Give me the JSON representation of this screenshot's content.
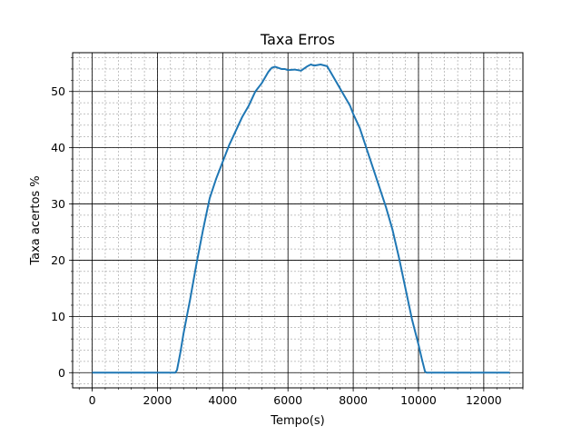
{
  "chart_data": {
    "type": "line",
    "title": "Taxa Erros",
    "xlabel": "Tempo(s)",
    "ylabel": "Taxa acertos %",
    "xlim": [
      -600,
      13200
    ],
    "ylim": [
      -2.7,
      56.9
    ],
    "xticks": [
      0,
      2000,
      4000,
      6000,
      8000,
      10000,
      12000
    ],
    "yticks": [
      0,
      10,
      20,
      30,
      40,
      50
    ],
    "x_minor_step": 400,
    "y_minor_step": 2,
    "grid": "major and minor",
    "line_color": "#1f77b4",
    "series": [
      {
        "x": [
          0,
          1000,
          2000,
          2550,
          2600,
          2700,
          2800,
          2900,
          3000,
          3200,
          3400,
          3600,
          3800,
          4000,
          4200,
          4400,
          4600,
          4800,
          5000,
          5200,
          5400,
          5500,
          5600,
          5700,
          5800,
          5900,
          6000,
          6200,
          6400,
          6600,
          6700,
          6800,
          7000,
          7200,
          7300,
          7500,
          7700,
          7900,
          8000,
          8200,
          8400,
          8600,
          8800,
          9000,
          9200,
          9400,
          9600,
          9800,
          10000,
          10100,
          10200,
          10250,
          10300,
          11000,
          12000,
          12800
        ],
        "y": [
          0,
          0,
          0,
          0,
          0.5,
          3.5,
          7,
          10,
          13,
          19.5,
          25.5,
          31,
          34.5,
          37.5,
          40.5,
          43,
          45.5,
          47.5,
          50,
          51.5,
          53.5,
          54.2,
          54.4,
          54.2,
          54,
          54,
          53.8,
          53.9,
          53.7,
          54.5,
          54.8,
          54.6,
          54.8,
          54.5,
          53.5,
          51.5,
          49.5,
          47.5,
          46,
          43.5,
          40,
          36.5,
          33,
          29.5,
          25.5,
          20.5,
          15,
          9.5,
          5,
          2.5,
          0.2,
          0,
          0,
          0,
          0,
          0
        ]
      }
    ]
  }
}
